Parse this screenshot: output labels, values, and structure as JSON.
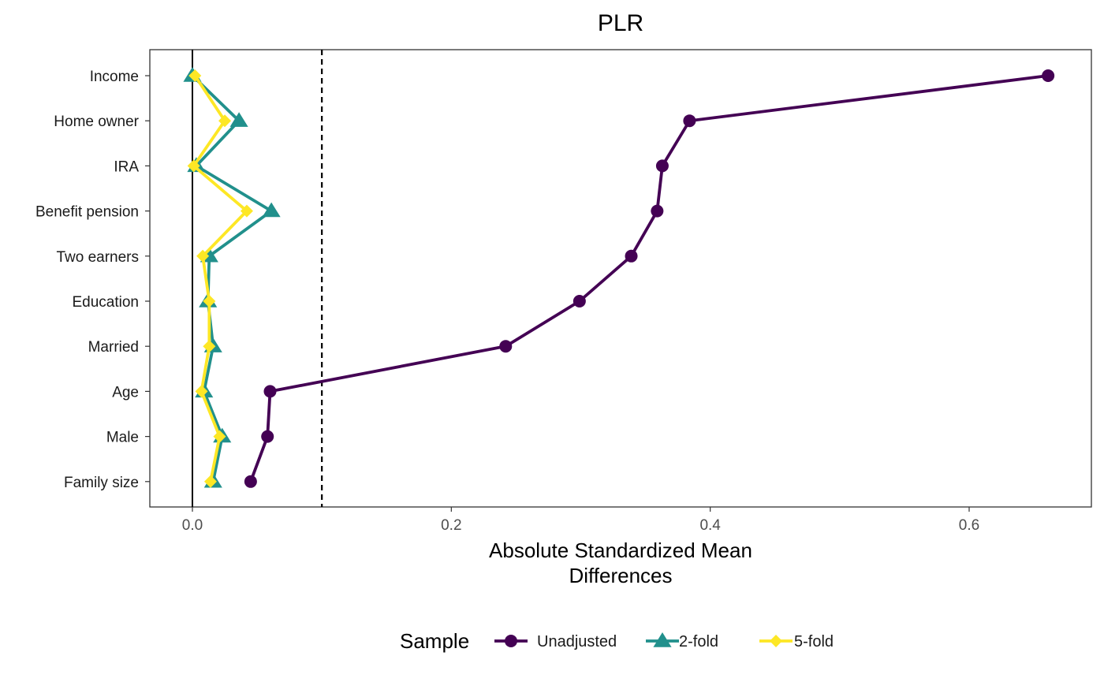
{
  "chart_data": {
    "type": "line",
    "title": "PLR",
    "xlabel_lines": [
      "Absolute Standardized Mean",
      "Differences"
    ],
    "ylabel": "",
    "xlim": [
      -0.033,
      0.69
    ],
    "xticks": [
      0.0,
      0.2,
      0.4,
      0.6
    ],
    "xtick_labels": [
      "0.0",
      "0.2",
      "0.4",
      "0.6"
    ],
    "categories": [
      "Income",
      "Home owner",
      "IRA",
      "Benefit pension",
      "Two earners",
      "Education",
      "Married",
      "Age",
      "Male",
      "Family size"
    ],
    "reference_lines": [
      {
        "x": 0.0,
        "style": "solid"
      },
      {
        "x": 0.1,
        "style": "dashed"
      }
    ],
    "grid": false,
    "legend": {
      "title": "Sample",
      "position": "bottom"
    },
    "series": [
      {
        "name": "Unadjusted",
        "color": "#440154",
        "marker": "circle",
        "values": [
          0.661,
          0.384,
          0.363,
          0.359,
          0.339,
          0.299,
          0.242,
          0.06,
          0.058,
          0.045
        ]
      },
      {
        "name": "2-fold",
        "color": "#21908C",
        "marker": "triangle",
        "values": [
          0.0,
          0.036,
          0.003,
          0.061,
          0.013,
          0.012,
          0.016,
          0.009,
          0.023,
          0.016
        ]
      },
      {
        "name": "5-fold",
        "color": "#FDE725",
        "marker": "diamond",
        "values": [
          0.002,
          0.025,
          0.001,
          0.042,
          0.008,
          0.013,
          0.013,
          0.007,
          0.021,
          0.014
        ]
      }
    ]
  }
}
